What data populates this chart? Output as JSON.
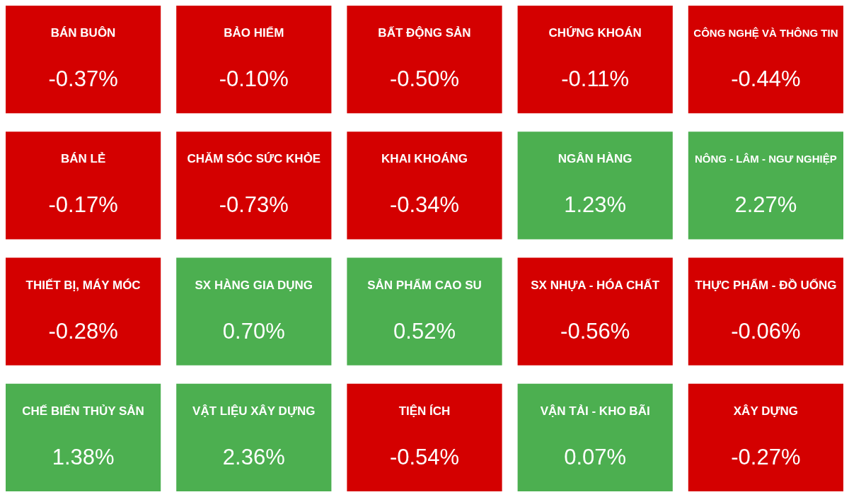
{
  "chart_data": {
    "type": "other",
    "categories": [
      "BÁN BUÔN",
      "BẢO HIỂM",
      "BẤT ĐỘNG SẢN",
      "CHỨNG KHOÁN",
      "CÔNG NGHỆ VÀ THÔNG TIN",
      "BÁN LẺ",
      "CHĂM SÓC SỨC KHỎE",
      "KHAI KHOÁNG",
      "NGÂN HÀNG",
      "NÔNG - LÂM - NGƯ NGHIỆP",
      "THIẾT BỊ, MÁY MÓC",
      "SX HÀNG GIA DỤNG",
      "SẢN PHẨM CAO SU",
      "SX NHỰA - HÓA CHẤT",
      "THỰC PHẨM - ĐỒ UỐNG",
      "CHẾ BIẾN THỦY SẢN",
      "VẬT LIỆU XÂY DỰNG",
      "TIỆN ÍCH",
      "VẬN TẢI - KHO BÃI",
      "XÂY DỰNG"
    ],
    "values": [
      -0.37,
      -0.1,
      -0.5,
      -0.11,
      -0.44,
      -0.17,
      -0.73,
      -0.34,
      1.23,
      2.27,
      -0.28,
      0.7,
      0.52,
      -0.56,
      -0.06,
      1.38,
      2.36,
      -0.54,
      0.07,
      -0.27
    ],
    "value_labels": [
      "-0.37%",
      "-0.10%",
      "-0.50%",
      "-0.11%",
      "-0.44%",
      "-0.17%",
      "-0.73%",
      "-0.34%",
      "1.23%",
      "2.27%",
      "-0.28%",
      "0.70%",
      "0.52%",
      "-0.56%",
      "-0.06%",
      "1.38%",
      "2.36%",
      "-0.54%",
      "0.07%",
      "-0.27%"
    ],
    "colors": [
      "#d40000",
      "#d40000",
      "#d40000",
      "#d40000",
      "#d40000",
      "#d40000",
      "#d40000",
      "#d40000",
      "#4caf50",
      "#4caf50",
      "#d40000",
      "#4caf50",
      "#4caf50",
      "#d40000",
      "#d40000",
      "#4caf50",
      "#4caf50",
      "#d40000",
      "#4caf50",
      "#d40000"
    ]
  }
}
